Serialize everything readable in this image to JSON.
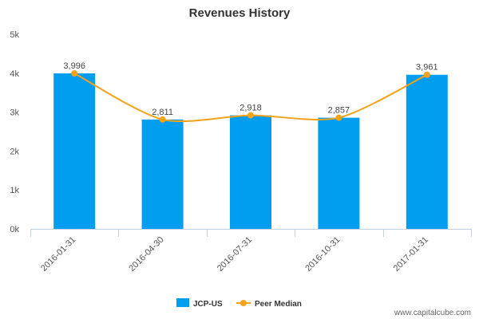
{
  "chart_data": {
    "type": "bar",
    "title": "Revenues History",
    "categories": [
      "2016-01-31",
      "2016-04-30",
      "2016-07-31",
      "2016-10-31",
      "2017-01-31"
    ],
    "series": [
      {
        "name": "JCP-US",
        "kind": "bar",
        "color": "#019ef0",
        "values": [
          3996,
          2811,
          2918,
          2857,
          3961
        ]
      },
      {
        "name": "Peer Median",
        "kind": "line",
        "color": "#f5a21b",
        "values": [
          3996,
          2811,
          2918,
          2857,
          3961
        ]
      }
    ],
    "data_labels": [
      "3,996",
      "2,811",
      "2,918",
      "2,857",
      "3,961"
    ],
    "ylim": [
      0,
      5000
    ],
    "yticks": [
      {
        "value": 0,
        "label": "0k"
      },
      {
        "value": 1000,
        "label": "1k"
      },
      {
        "value": 2000,
        "label": "2k"
      },
      {
        "value": 3000,
        "label": "3k"
      },
      {
        "value": 4000,
        "label": "4k"
      },
      {
        "value": 5000,
        "label": "5k"
      }
    ],
    "grid": false,
    "legend_position": "bottom-center"
  },
  "watermark": "www.capitalcube.com"
}
